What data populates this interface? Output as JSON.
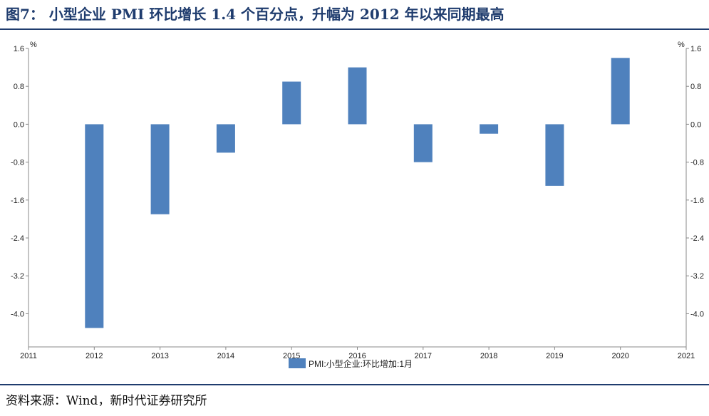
{
  "header": {
    "title": "图7：  小型企业 PMI 环比增长 1.4 个百分点，升幅为 2012 年以来同期最高"
  },
  "footer": {
    "source": "资料来源：Wind，新时代证券研究所"
  },
  "colors": {
    "bar": "#4f81bd",
    "title": "#1f3c6e"
  },
  "chart_data": {
    "type": "bar",
    "unit_label": "%",
    "x_ticks": [
      "2011",
      "2012",
      "2013",
      "2014",
      "2015",
      "2016",
      "2017",
      "2018",
      "2019",
      "2020",
      "2021"
    ],
    "categories": [
      "2012",
      "2013",
      "2014",
      "2015",
      "2016",
      "2017",
      "2018",
      "2019",
      "2020"
    ],
    "series": [
      {
        "name": "PMI:小型企业:环比增加:1月",
        "values": [
          -4.3,
          -1.9,
          -0.6,
          0.9,
          1.2,
          -0.8,
          -0.2,
          -1.3,
          1.4
        ]
      }
    ],
    "y_ticks": [
      "1.6",
      "0.8",
      "0.0",
      "-0.8",
      "-1.6",
      "-2.4",
      "-3.2",
      "-4.0"
    ],
    "ylim": [
      -4.7,
      1.6
    ],
    "dual_y_axis": true,
    "legend_position": "bottom-center",
    "grid": false
  }
}
